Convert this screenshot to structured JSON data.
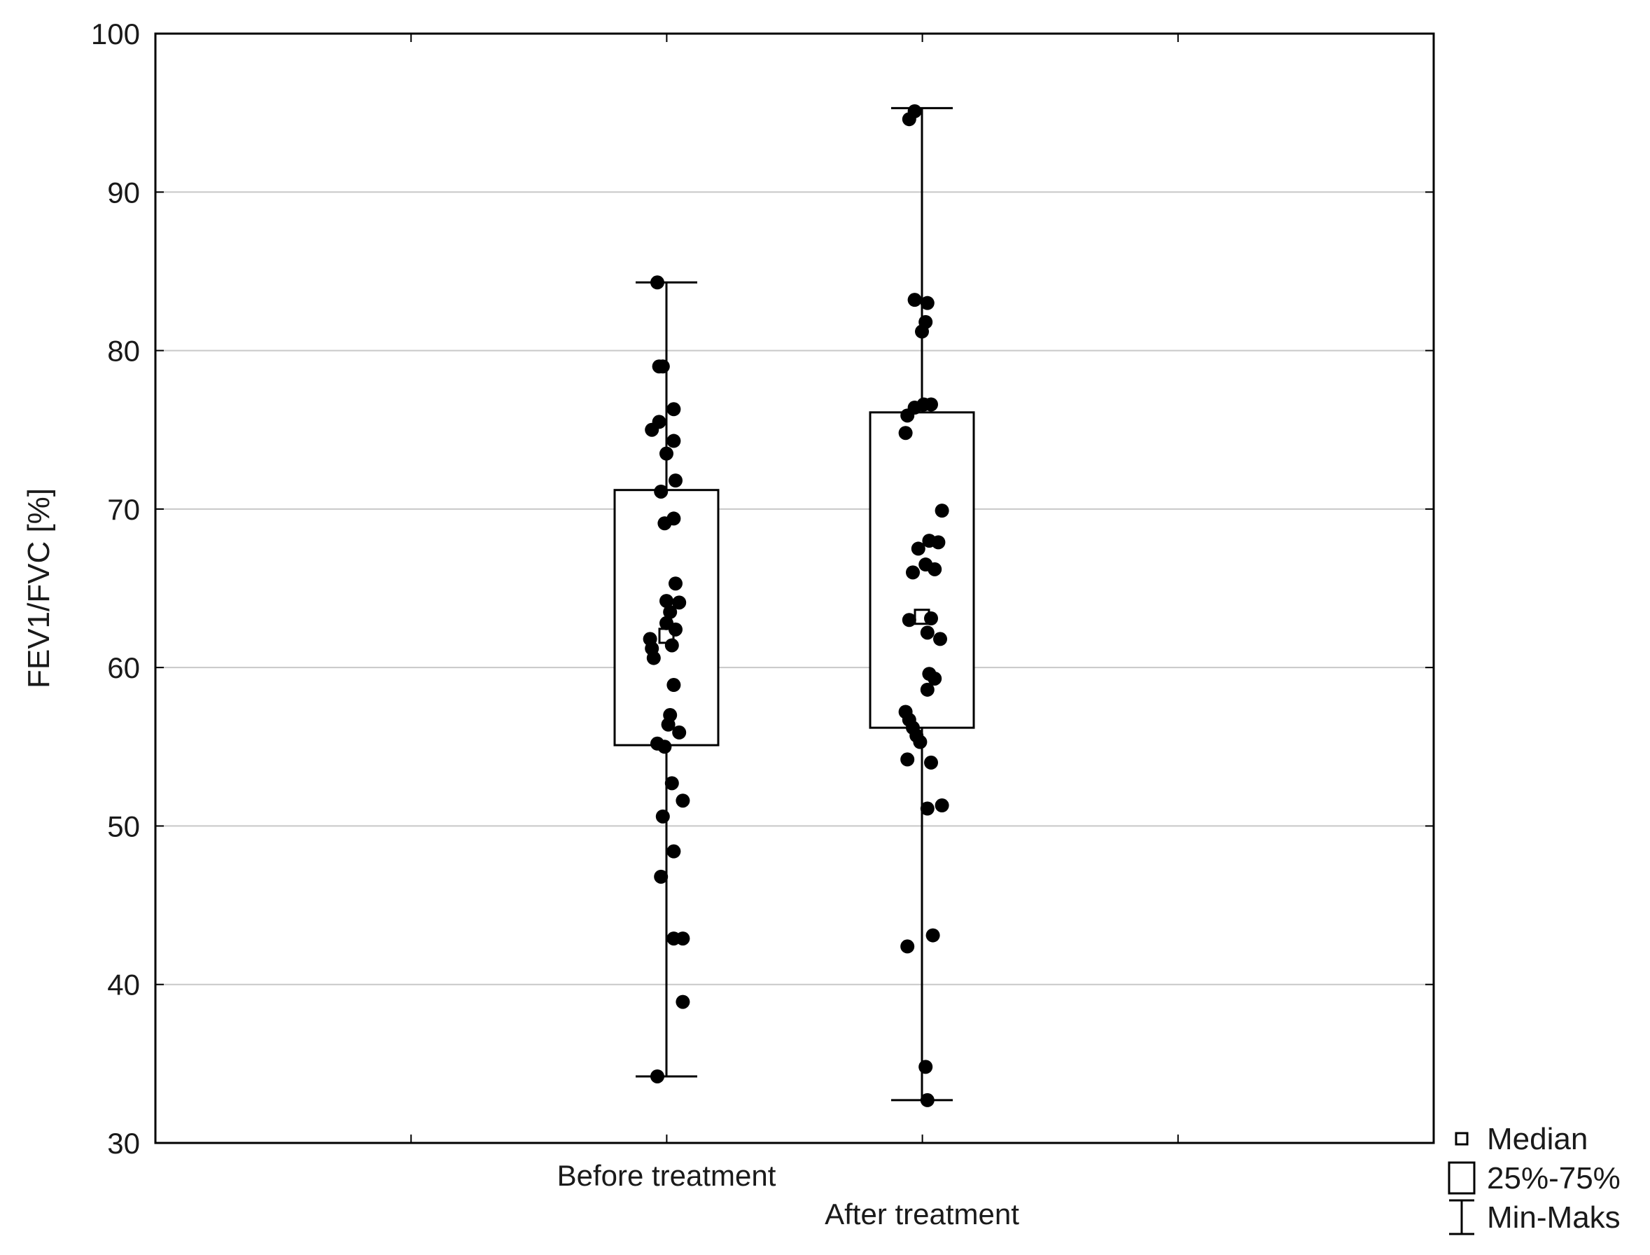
{
  "chart_data": {
    "type": "box",
    "ylabel": "FEV1/FVC [%]",
    "ylim": [
      30,
      100
    ],
    "yticks": [
      30,
      40,
      50,
      60,
      70,
      80,
      90,
      100
    ],
    "grid": true,
    "legend_position": "bottom-right outside",
    "legend": [
      {
        "symbol": "median-square",
        "label": "Median"
      },
      {
        "symbol": "box",
        "label": "25%-75%"
      },
      {
        "symbol": "whisker",
        "label": "Min-Maks"
      }
    ],
    "groups": [
      {
        "category": "Before treatment",
        "min": 34.2,
        "q1": 55.1,
        "median": 62.0,
        "q3": 71.2,
        "max": 84.3,
        "points": [
          {
            "x": -0.05,
            "y": 84.3
          },
          {
            "x": -0.02,
            "y": 79.0
          },
          {
            "x": -0.04,
            "y": 79.0
          },
          {
            "x": 0.04,
            "y": 76.3
          },
          {
            "x": -0.04,
            "y": 75.5
          },
          {
            "x": -0.08,
            "y": 75.0
          },
          {
            "x": 0.04,
            "y": 74.3
          },
          {
            "x": 0.0,
            "y": 73.5
          },
          {
            "x": 0.05,
            "y": 71.8
          },
          {
            "x": -0.03,
            "y": 71.1
          },
          {
            "x": -0.01,
            "y": 69.1
          },
          {
            "x": 0.04,
            "y": 69.4
          },
          {
            "x": 0.05,
            "y": 65.3
          },
          {
            "x": 0.07,
            "y": 64.1
          },
          {
            "x": 0.0,
            "y": 64.2
          },
          {
            "x": 0.02,
            "y": 63.5
          },
          {
            "x": 0.0,
            "y": 62.8
          },
          {
            "x": 0.05,
            "y": 62.4
          },
          {
            "x": -0.09,
            "y": 61.8
          },
          {
            "x": 0.03,
            "y": 61.4
          },
          {
            "x": -0.08,
            "y": 61.2
          },
          {
            "x": -0.07,
            "y": 60.6
          },
          {
            "x": 0.04,
            "y": 58.9
          },
          {
            "x": 0.02,
            "y": 57.0
          },
          {
            "x": 0.01,
            "y": 56.4
          },
          {
            "x": 0.07,
            "y": 55.9
          },
          {
            "x": -0.05,
            "y": 55.2
          },
          {
            "x": -0.01,
            "y": 55.0
          },
          {
            "x": 0.03,
            "y": 52.7
          },
          {
            "x": 0.09,
            "y": 51.6
          },
          {
            "x": -0.02,
            "y": 50.6
          },
          {
            "x": 0.04,
            "y": 48.4
          },
          {
            "x": -0.03,
            "y": 46.8
          },
          {
            "x": 0.04,
            "y": 42.9
          },
          {
            "x": 0.09,
            "y": 42.9
          },
          {
            "x": 0.09,
            "y": 38.9
          },
          {
            "x": -0.05,
            "y": 34.2
          }
        ]
      },
      {
        "category": "After treatment",
        "min": 32.7,
        "q1": 56.2,
        "median": 63.2,
        "q3": 76.1,
        "max": 95.3,
        "points": [
          {
            "x": -0.04,
            "y": 95.1
          },
          {
            "x": -0.07,
            "y": 94.6
          },
          {
            "x": -0.04,
            "y": 83.2
          },
          {
            "x": 0.03,
            "y": 83.0
          },
          {
            "x": 0.02,
            "y": 81.8
          },
          {
            "x": 0.0,
            "y": 81.2
          },
          {
            "x": 0.01,
            "y": 76.6
          },
          {
            "x": 0.05,
            "y": 76.6
          },
          {
            "x": -0.04,
            "y": 76.4
          },
          {
            "x": -0.08,
            "y": 75.9
          },
          {
            "x": -0.09,
            "y": 74.8
          },
          {
            "x": 0.11,
            "y": 69.9
          },
          {
            "x": 0.04,
            "y": 68.0
          },
          {
            "x": 0.09,
            "y": 67.9
          },
          {
            "x": -0.02,
            "y": 67.5
          },
          {
            "x": 0.02,
            "y": 66.5
          },
          {
            "x": 0.07,
            "y": 66.2
          },
          {
            "x": -0.05,
            "y": 66.0
          },
          {
            "x": -0.07,
            "y": 63.0
          },
          {
            "x": 0.05,
            "y": 63.1
          },
          {
            "x": 0.03,
            "y": 62.2
          },
          {
            "x": 0.1,
            "y": 61.8
          },
          {
            "x": 0.04,
            "y": 59.6
          },
          {
            "x": 0.07,
            "y": 59.3
          },
          {
            "x": 0.03,
            "y": 58.6
          },
          {
            "x": -0.09,
            "y": 57.2
          },
          {
            "x": -0.07,
            "y": 56.7
          },
          {
            "x": -0.05,
            "y": 56.2
          },
          {
            "x": -0.03,
            "y": 55.7
          },
          {
            "x": -0.01,
            "y": 55.3
          },
          {
            "x": -0.08,
            "y": 54.2
          },
          {
            "x": 0.05,
            "y": 54.0
          },
          {
            "x": 0.11,
            "y": 51.3
          },
          {
            "x": 0.03,
            "y": 51.1
          },
          {
            "x": 0.06,
            "y": 43.1
          },
          {
            "x": -0.08,
            "y": 42.4
          },
          {
            "x": 0.02,
            "y": 34.8
          },
          {
            "x": 0.03,
            "y": 32.7
          }
        ]
      }
    ]
  }
}
